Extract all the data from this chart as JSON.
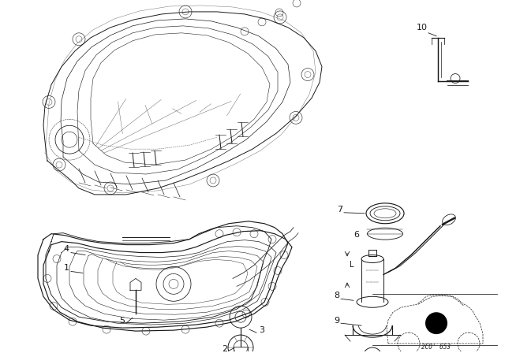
{
  "bg_color": "#ffffff",
  "lc": "#1a1a1a",
  "watermark": "2CO’653"
}
